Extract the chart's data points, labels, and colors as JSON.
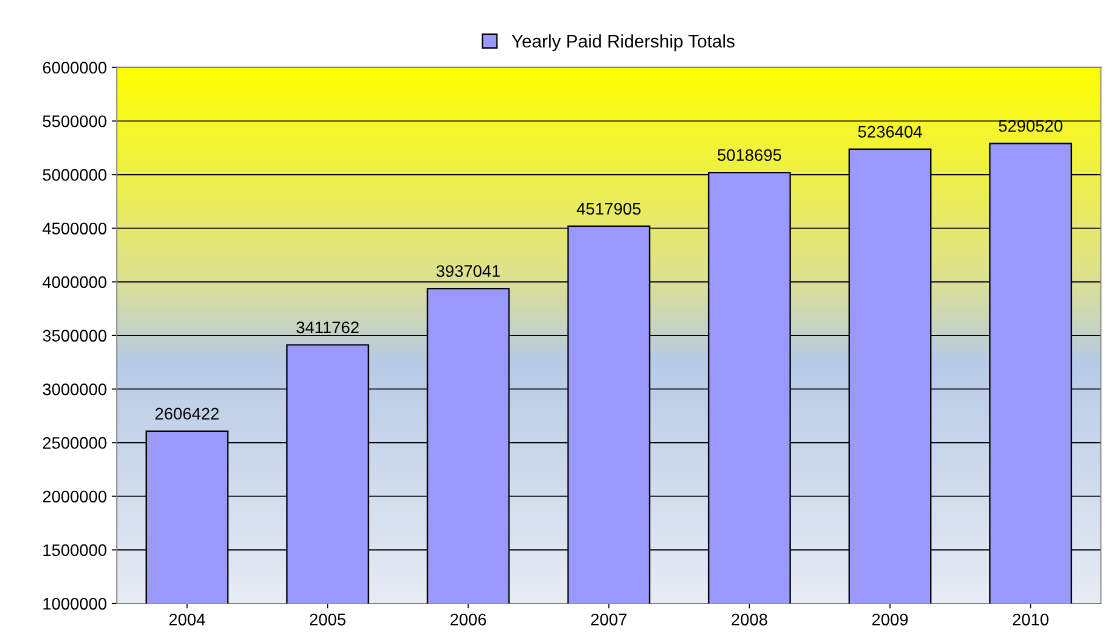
{
  "chart_data": {
    "type": "bar",
    "categories": [
      "2004",
      "2005",
      "2006",
      "2007",
      "2008",
      "2009",
      "2010"
    ],
    "series": [
      {
        "name": "Yearly Paid Ridership Totals",
        "color": "#9999ff",
        "values": [
          2606422,
          3411762,
          3937041,
          4517905,
          5018695,
          5236404,
          5290520
        ]
      }
    ],
    "ylim": [
      1000000,
      6000000
    ],
    "yticks": [
      1000000,
      1500000,
      2000000,
      2500000,
      3000000,
      3500000,
      4000000,
      4500000,
      5000000,
      5500000,
      6000000
    ],
    "grid": "y",
    "legend": "top",
    "data_labels": true
  }
}
